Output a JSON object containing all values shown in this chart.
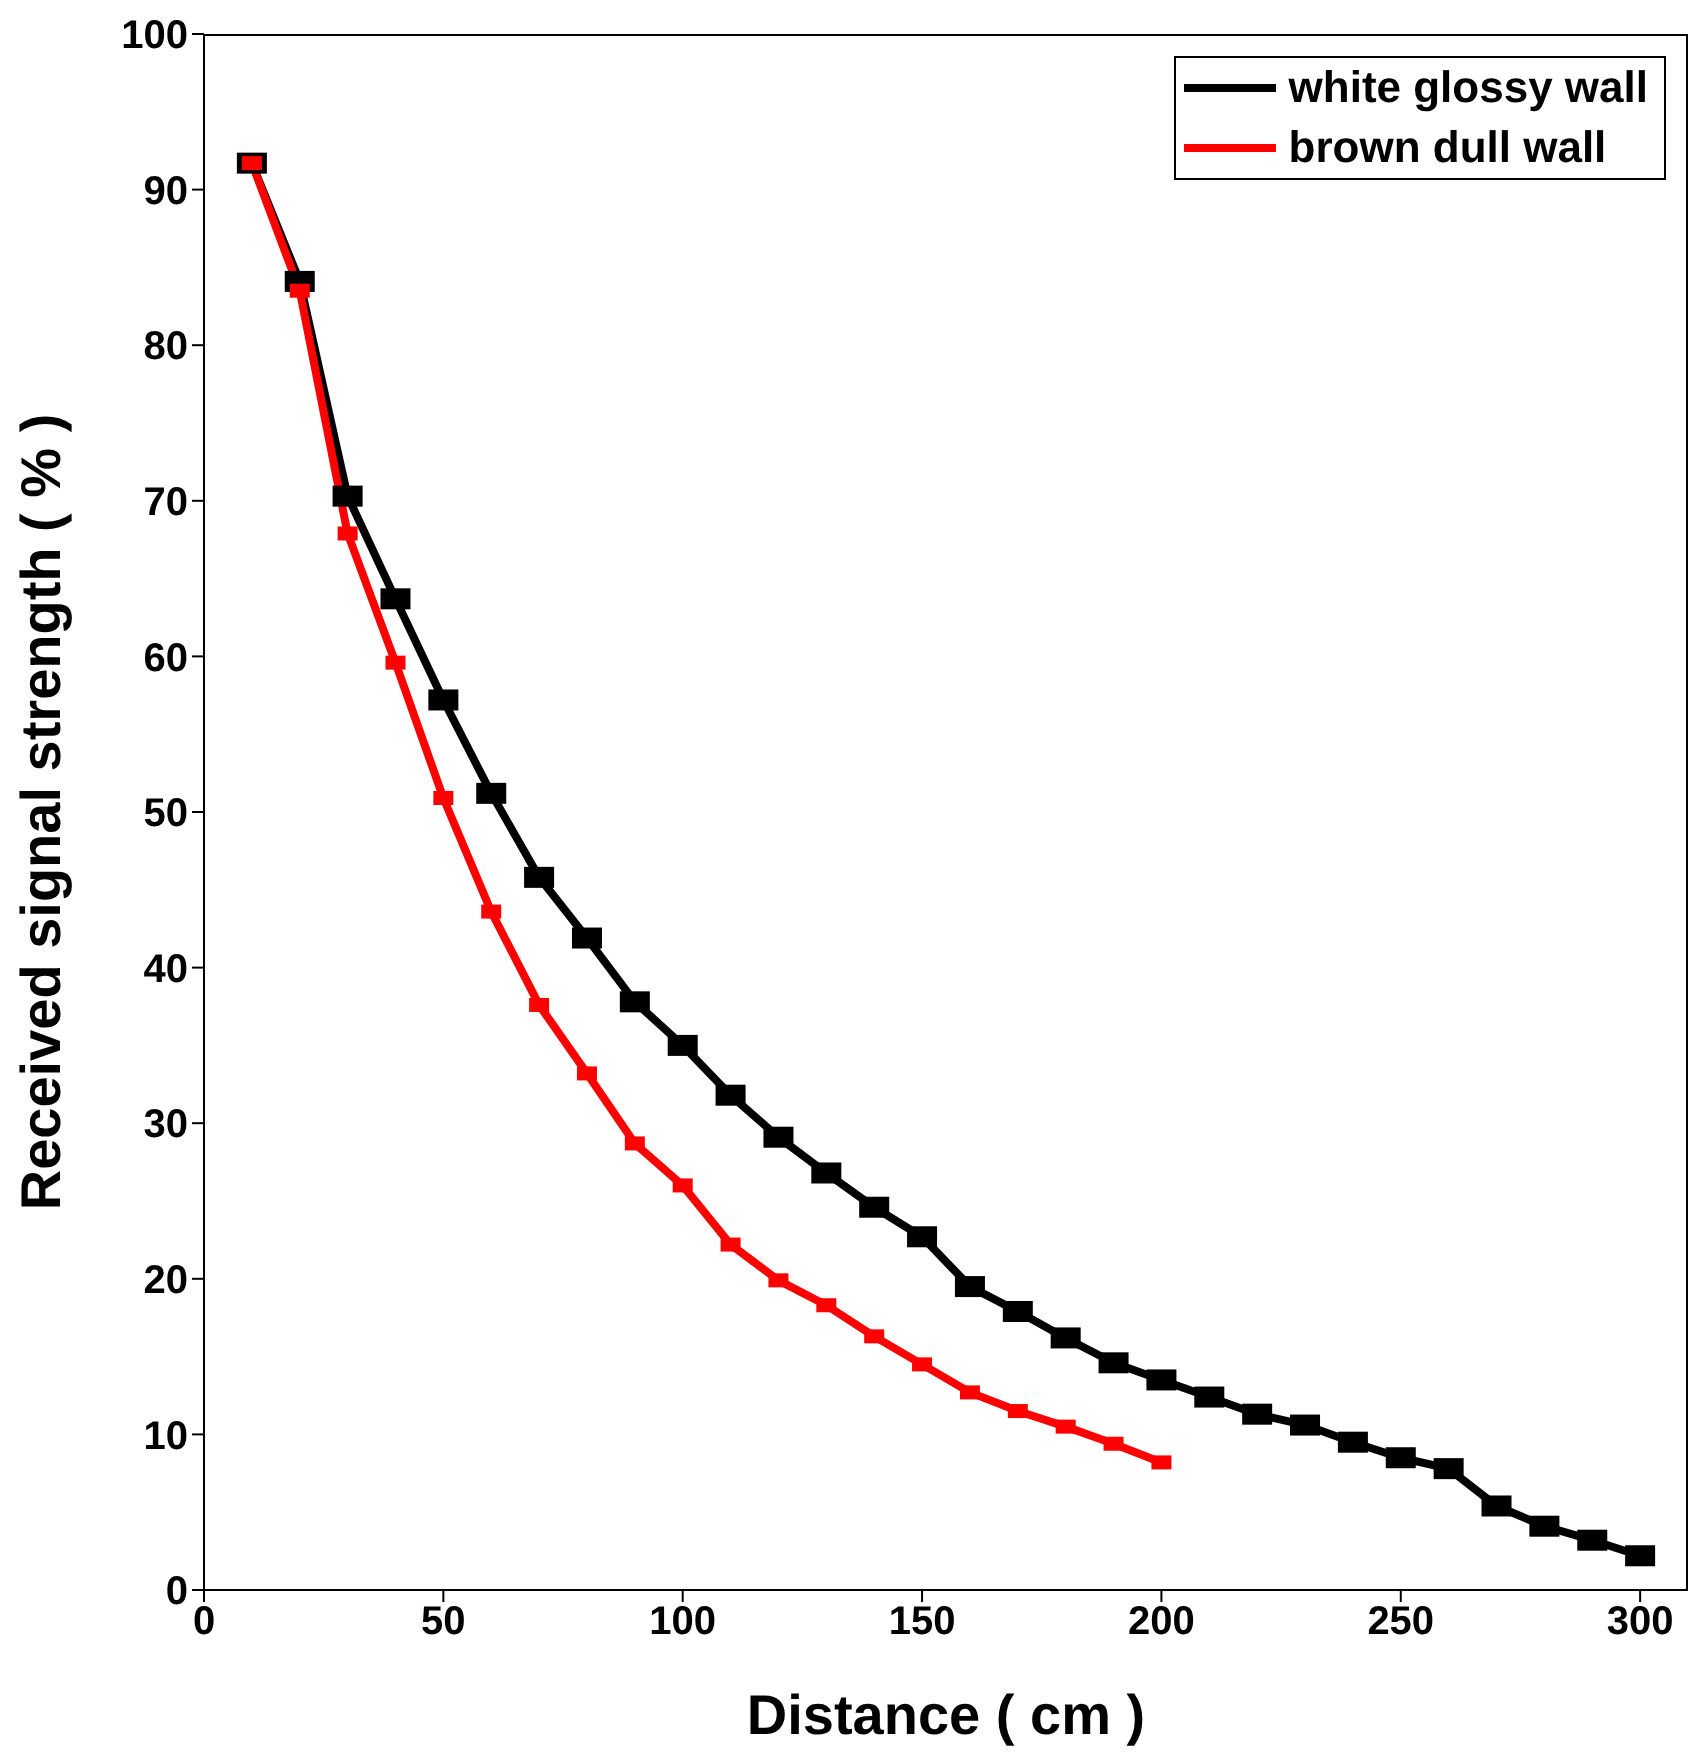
{
  "chart_data": {
    "type": "line",
    "xlabel": "Distance ( cm )",
    "ylabel": "Received signal strength ( % )",
    "xlim": [
      0,
      310
    ],
    "xticks": [
      0,
      50,
      100,
      150,
      200,
      250,
      300
    ],
    "ylim": [
      0,
      100
    ],
    "yticks": [
      0,
      10,
      20,
      30,
      40,
      50,
      60,
      70,
      80,
      90,
      100
    ],
    "legend": "top right",
    "marker": "square",
    "line_style": "solid",
    "series": [
      {
        "name": "white glossy wall",
        "color": "#000000",
        "x": [
          10,
          20,
          30,
          40,
          50,
          60,
          70,
          80,
          90,
          100,
          110,
          120,
          130,
          140,
          150,
          160,
          170,
          180,
          190,
          200,
          210,
          220,
          230,
          240,
          250,
          260,
          270,
          280,
          290,
          300
        ],
        "values": [
          91.7,
          84.1,
          70.3,
          63.7,
          57.2,
          51.2,
          45.8,
          41.9,
          37.8,
          35.0,
          31.8,
          29.1,
          26.8,
          24.6,
          22.7,
          19.5,
          17.9,
          16.2,
          14.6,
          13.5,
          12.4,
          11.3,
          10.6,
          9.5,
          8.5,
          7.8,
          5.4,
          4.1,
          3.2,
          2.2
        ]
      },
      {
        "name": "brown dull wall",
        "color": "#ff0000",
        "x": [
          10,
          20,
          30,
          40,
          50,
          60,
          70,
          80,
          90,
          100,
          110,
          120,
          130,
          140,
          150,
          160,
          170,
          180,
          190,
          200
        ],
        "values": [
          91.7,
          83.5,
          67.9,
          59.6,
          50.9,
          43.6,
          37.6,
          33.2,
          28.7,
          26.0,
          22.2,
          19.9,
          18.3,
          16.3,
          14.5,
          12.7,
          11.5,
          10.5,
          9.4,
          8.2
        ]
      }
    ]
  }
}
